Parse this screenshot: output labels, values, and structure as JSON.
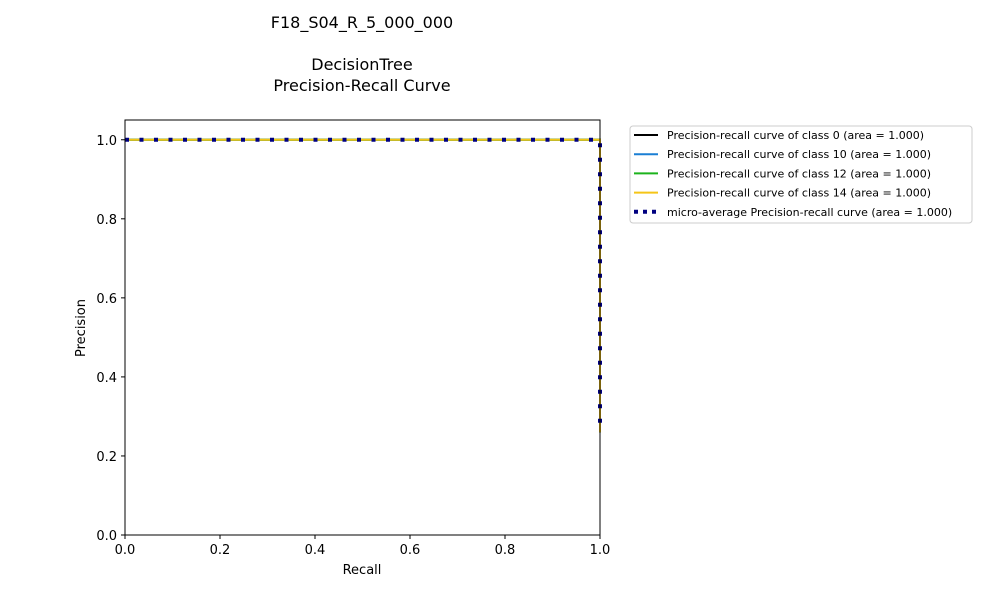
{
  "chart_data": {
    "type": "line",
    "title": "F18_S04_R_5_000_000",
    "subtitle": "DecisionTree",
    "subtitle2": "Precision-Recall Curve",
    "xlabel": "Recall",
    "ylabel": "Precision",
    "xlim": [
      0,
      1
    ],
    "ylim": [
      0,
      1.05
    ],
    "xticks": [
      0,
      0.2,
      0.4,
      0.6,
      0.8,
      1.0
    ],
    "yticks": [
      0,
      0.2,
      0.4,
      0.6,
      0.8,
      1.0
    ],
    "xtick_labels": [
      "0.0",
      "0.2",
      "0.4",
      "0.6",
      "0.8",
      "1.0"
    ],
    "ytick_labels": [
      "0.0",
      "0.2",
      "0.4",
      "0.6",
      "0.8",
      "1.0"
    ],
    "grid": false,
    "legend_placement": "outside-top-right",
    "series": [
      {
        "name": "Precision-recall curve of class 0 (area = 1.000)",
        "color": "#000000",
        "style": "solid",
        "x": [
          0,
          1,
          1
        ],
        "y": [
          1,
          1,
          0.26
        ]
      },
      {
        "name": "Precision-recall curve of class 10 (area = 1.000)",
        "color": "#1a7fd4",
        "style": "solid",
        "x": [
          0,
          1,
          1
        ],
        "y": [
          1,
          1,
          0.26
        ]
      },
      {
        "name": "Precision-recall curve of class 12 (area = 1.000)",
        "color": "#1cb31c",
        "style": "solid",
        "x": [
          0,
          1,
          1
        ],
        "y": [
          1,
          1,
          0.26
        ]
      },
      {
        "name": "Precision-recall curve of class 14 (area = 1.000)",
        "color": "#f5c518",
        "style": "solid",
        "x": [
          0,
          1,
          1
        ],
        "y": [
          1,
          1,
          0.26
        ]
      },
      {
        "name": "micro-average Precision-recall curve (area = 1.000)",
        "color": "#000080",
        "style": "dotted",
        "x": [
          0,
          1,
          1
        ],
        "y": [
          1,
          1,
          0.26
        ]
      }
    ]
  }
}
